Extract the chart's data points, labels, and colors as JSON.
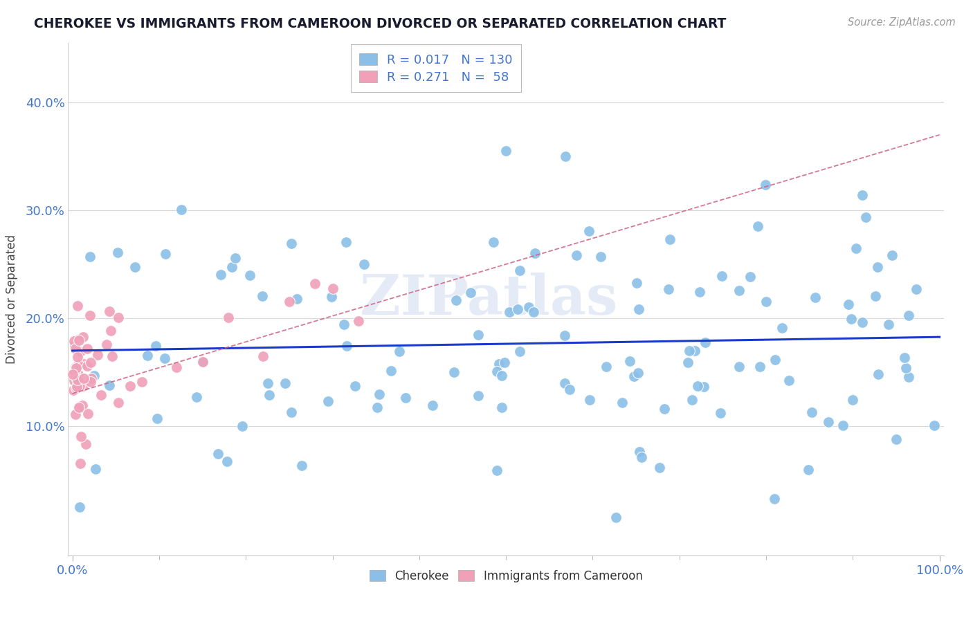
{
  "title": "CHEROKEE VS IMMIGRANTS FROM CAMEROON DIVORCED OR SEPARATED CORRELATION CHART",
  "source_text": "Source: ZipAtlas.com",
  "ylabel": "Divorced or Separated",
  "cherokee_color": "#8bbfe8",
  "cameroon_color": "#f0a0b8",
  "trendline_cherokee_color": "#1a3acc",
  "trendline_cameroon_color": "#d06080",
  "grid_color": "#d8d8d8",
  "watermark": "ZIPatlas",
  "cherokee_R": 0.017,
  "cherokee_N": 130,
  "cameroon_R": 0.271,
  "cameroon_N": 58,
  "y_min": -0.02,
  "y_max": 0.455,
  "x_min": -0.005,
  "x_max": 1.005
}
